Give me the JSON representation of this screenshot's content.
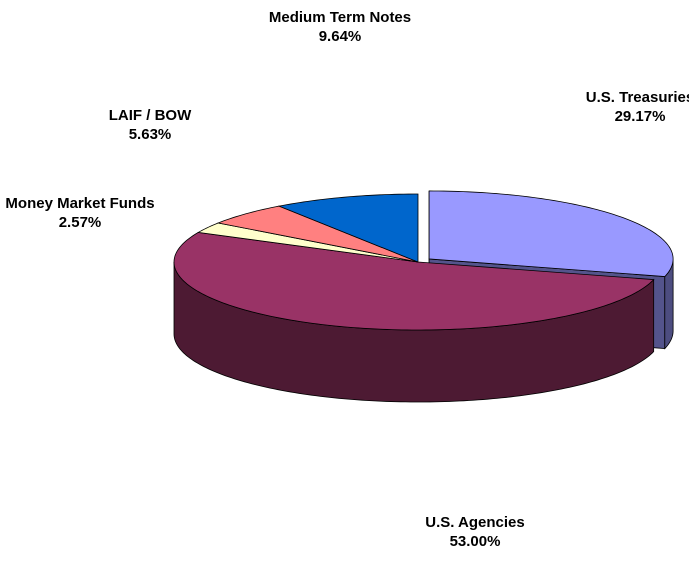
{
  "chart_data": {
    "type": "pie",
    "categories": [
      "U.S. Treasuries",
      "U.S. Agencies",
      "Money Market Funds",
      "LAIF / BOW",
      "Medium Term Notes"
    ],
    "values": [
      29.17,
      53.0,
      2.57,
      5.63,
      9.64
    ],
    "value_labels": [
      "29.17%",
      "53.00%",
      "2.57%",
      "5.63%",
      "9.64%"
    ],
    "colors": [
      "#9999ff",
      "#993366",
      "#ffffcc",
      "#ff8080",
      "#0066cc"
    ],
    "exploded": [
      "U.S. Treasuries"
    ]
  }
}
